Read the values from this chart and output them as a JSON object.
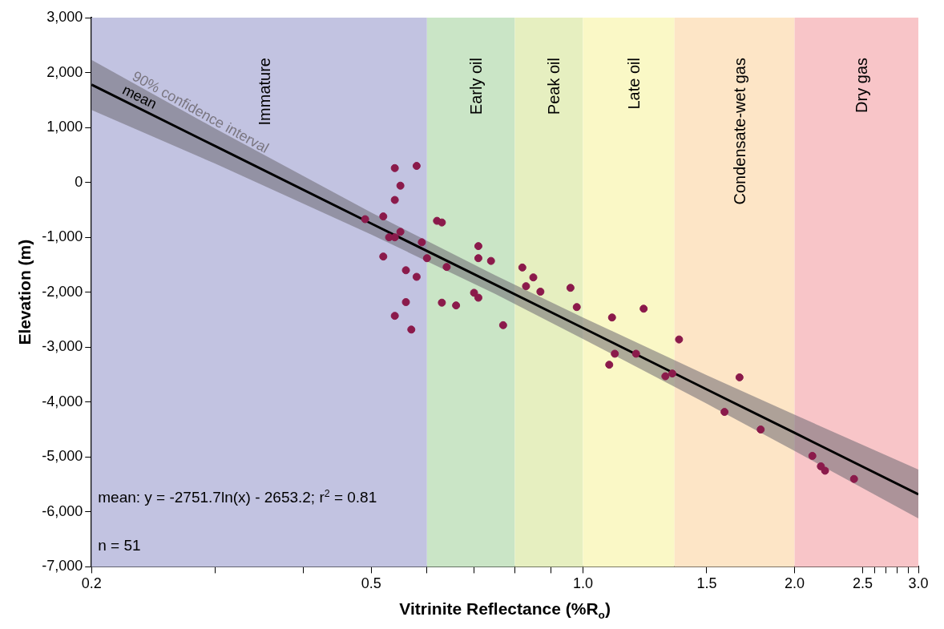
{
  "chart_data": {
    "type": "scatter",
    "xlabel": "Vitrinite Reflectance (%R$_{o}$)",
    "ylabel": "Elevation (m)",
    "log": "x",
    "xlim": [
      0.2,
      3
    ],
    "xticks": [
      0.2,
      {
        "value": 0.3,
        "label": null
      },
      {
        "value": 0.4,
        "label": null
      },
      0.5,
      {
        "value": 0.6,
        "label": null
      },
      {
        "value": 0.7,
        "label": null
      },
      {
        "value": 0.8,
        "label": null
      },
      {
        "value": 0.9,
        "label": null
      },
      {
        "value": 1,
        "label": "1.0"
      },
      1.5,
      {
        "value": 2,
        "label": "2.0"
      },
      2.5,
      {
        "value": 2.6,
        "label": null
      },
      {
        "value": 2.7,
        "label": null
      },
      {
        "value": 2.8,
        "label": null
      },
      {
        "value": 2.9,
        "label": null
      },
      {
        "value": 3,
        "label": "3.0"
      }
    ],
    "ylim": [
      -7000,
      3000
    ],
    "yticks": [
      {
        "value": -7000,
        "label": "-7,000"
      },
      {
        "value": -6000,
        "label": "-6,000"
      },
      {
        "value": -5000,
        "label": "-5,000"
      },
      {
        "value": -4000,
        "label": "-4,000"
      },
      {
        "value": -3000,
        "label": "-3,000"
      },
      {
        "value": -2000,
        "label": "-2,000"
      },
      {
        "value": -1000,
        "label": "-1,000"
      },
      0,
      {
        "value": 1000,
        "label": "1,000"
      },
      {
        "value": 2000,
        "label": "2,000"
      },
      {
        "value": 3000,
        "label": "3,000"
      }
    ],
    "grid": false,
    "legend": false,
    "bands": [
      {
        "axis": "x",
        "from": 0.2,
        "to": 0.6,
        "label": "Immature",
        "color": "#c2c3e1"
      },
      {
        "axis": "x",
        "from": 0.6,
        "to": 0.8,
        "label": "Early oil",
        "color": "#cae5c6"
      },
      {
        "axis": "x",
        "from": 0.8,
        "to": 1,
        "label": "Peak oil",
        "color": "#e6efc0"
      },
      {
        "axis": "x",
        "from": 1,
        "to": 1.35,
        "label": "Late oil",
        "color": "#faf8c6"
      },
      {
        "axis": "x",
        "from": 1.35,
        "to": 2,
        "label": "Condensate-wet gas",
        "color": "#fde5c6"
      },
      {
        "axis": "x",
        "from": 2,
        "to": 3,
        "label": "Dry gas",
        "color": "#f8c5c8"
      }
    ],
    "series": [
      {
        "type": "scatter",
        "marker": "circle",
        "color": "#8b1a4b",
        "x": [
          0.54,
          0.58,
          0.55,
          0.54,
          0.49,
          0.52,
          0.55,
          0.53,
          0.54,
          0.59,
          0.52,
          0.6,
          0.56,
          0.58,
          0.56,
          0.54,
          0.57,
          0.62,
          0.63,
          0.71,
          0.71,
          0.74,
          0.64,
          0.7,
          0.71,
          0.63,
          0.66,
          0.77,
          0.82,
          0.85,
          0.83,
          0.87,
          0.96,
          0.98,
          1.1,
          1.22,
          1.11,
          1.09,
          1.19,
          1.31,
          1.34,
          1.37,
          1.67,
          1.59,
          1.79,
          2.12,
          2.18,
          2.21,
          2.43
        ],
        "values": [
          260,
          300,
          -60,
          -320,
          -670,
          -620,
          -900,
          -1000,
          -1000,
          -1090,
          -1350,
          -1380,
          -1600,
          -1720,
          -2180,
          -2430,
          -2680,
          -700,
          -730,
          -1160,
          -1380,
          -1430,
          -1540,
          -2010,
          -2100,
          -2190,
          -2240,
          -2600,
          -1550,
          -1730,
          -1890,
          -1990,
          -1920,
          -2270,
          -2460,
          -2300,
          -3120,
          -3320,
          -3120,
          -3530,
          -3480,
          -2860,
          -3550,
          -4180,
          -4500,
          -4980,
          -5170,
          -5250,
          -5400
        ]
      },
      {
        "type": "line",
        "name": "mean",
        "marker": "none",
        "color": "#000000",
        "x": [
          0.2,
          0.3,
          0.5,
          0.75,
          1,
          1.5,
          2,
          3
        ],
        "values": [
          1780,
          660,
          -750,
          -1860,
          -2650,
          -3770,
          -4560,
          -5680
        ],
        "lower": [
          1320,
          340,
          -950,
          -2030,
          -2850,
          -4030,
          -4890,
          -6120
        ],
        "upper": [
          2230,
          980,
          -550,
          -1690,
          -2460,
          -3510,
          -4230,
          -5230
        ]
      }
    ],
    "annotations": [
      "90% confidence interval",
      "mean: y = -2751.7ln(x) - 2653.2; r$^{2}$ = 0.81",
      "n = 51"
    ]
  }
}
